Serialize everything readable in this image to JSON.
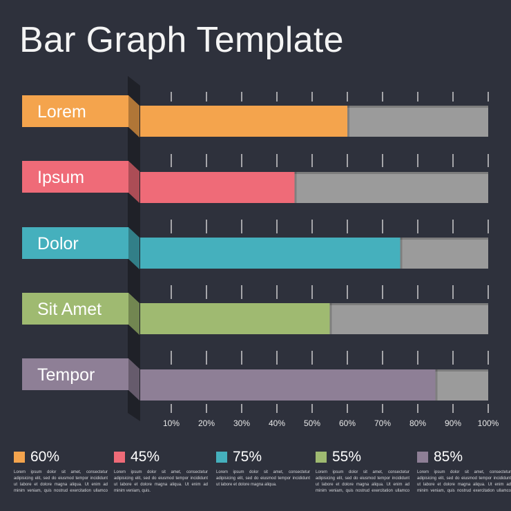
{
  "title": "Bar Graph Template",
  "chart_data": {
    "type": "bar",
    "orientation": "horizontal",
    "categories": [
      "Lorem",
      "Ipsum",
      "Dolor",
      "Sit Amet",
      "Tempor"
    ],
    "values": [
      60,
      45,
      75,
      55,
      85
    ],
    "unit": "%",
    "xlim": [
      0,
      100
    ],
    "tick_labels": [
      "10%",
      "20%",
      "30%",
      "40%",
      "50%",
      "60%",
      "70%",
      "80%",
      "90%",
      "100%"
    ],
    "colors": [
      "#f4a44d",
      "#ef6b78",
      "#45b0bd",
      "#9fba71",
      "#8e7f96"
    ],
    "track_color": "#9b9b9b"
  },
  "legend": [
    {
      "value": "60%",
      "color": "#f4a44d",
      "text": "Lorem ipsum dolor sit amet, consectetur adipisicing elit, sed do eiusmod tempor incididunt ut labore et dolore magna aliqua. Ut enim ad minim veniam, quis nostrud exercitation ullamco laboris nisi ut aliquip ex."
    },
    {
      "value": "45%",
      "color": "#ef6b78",
      "text": "Lorem ipsum dolor sit amet, consectetur adipisicing elit, sed do eiusmod tempor incididunt ut labore et dolore magna aliqua. Ut enim ad minim veniam, quis."
    },
    {
      "value": "75%",
      "color": "#45b0bd",
      "text": "Lorem ipsum dolor sit amet, consectetur adipisicing elit, sed do eiusmod tempor incididunt ut labore et dolore magna aliqua."
    },
    {
      "value": "55%",
      "color": "#9fba71",
      "text": "Lorem ipsum dolor sit amet, consectetur adipisicing elit, sed do eiusmod tempor incididunt ut labore et dolore magna aliqua. Ut enim ad minim veniam, quis nostrud exercitation ullamco laboris."
    },
    {
      "value": "85%",
      "color": "#8e7f96",
      "text": "Lorem ipsum dolor sit amet, consectetur adipisicing elit, sed do eiusmod tempor incididunt ut labore et dolore magna aliqua. Ut enim ad minim veniam, quis nostrud exercitation ullamco laboris nisi ut aliquip ex."
    }
  ]
}
